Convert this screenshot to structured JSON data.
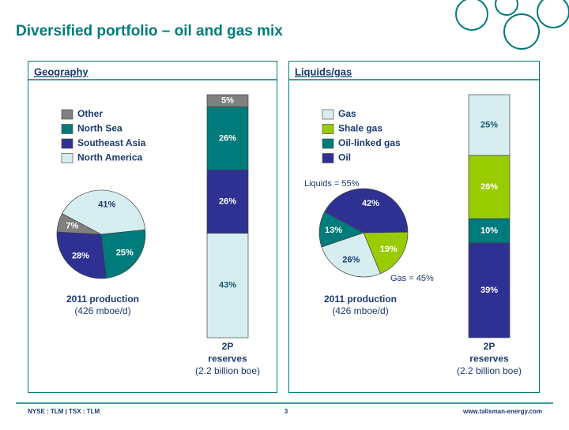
{
  "title": "Diversified portfolio – oil and gas mix",
  "footer": {
    "left": "NYSE : TLM | TSX : TLM",
    "page": "3",
    "right": "www.talisman-energy.com"
  },
  "chart_data": [
    {
      "type": "pie",
      "title": "Geography",
      "categories": [
        "Other",
        "North Sea",
        "Southeast Asia",
        "North America"
      ],
      "values": [
        7,
        25,
        28,
        41
      ],
      "value_labels": [
        "7%",
        "25%",
        "28%",
        "41%"
      ],
      "colors": [
        "#808080",
        "#007b7b",
        "#2e3192",
        "#d6eef0"
      ],
      "caption": [
        "2011 production",
        "(426 mboe/d)"
      ]
    },
    {
      "type": "bar",
      "stacked": true,
      "values": [
        5,
        26,
        26,
        43
      ],
      "value_labels": [
        "5%",
        "26%",
        "26%",
        "43%"
      ],
      "colors": [
        "#808080",
        "#007b7b",
        "#2e3192",
        "#d6eef0"
      ],
      "caption": [
        "2P",
        "reserves",
        "(2.2 billion boe)"
      ]
    },
    {
      "type": "pie",
      "title": "Liquids/gas",
      "categories": [
        "Gas",
        "Shale gas",
        "Oil-linked gas",
        "Oil"
      ],
      "values": [
        26,
        19,
        13,
        42
      ],
      "value_labels": [
        "26%",
        "19%",
        "13%",
        "42%"
      ],
      "colors": [
        "#d6eef0",
        "#99cc00",
        "#007b7b",
        "#2e3192"
      ],
      "caption": [
        "2011 production",
        "(426 mboe/d)"
      ],
      "annotations": [
        "Liquids = 55%",
        "Gas = 45%"
      ]
    },
    {
      "type": "bar",
      "stacked": true,
      "values": [
        25,
        26,
        10,
        39
      ],
      "value_labels": [
        "25%",
        "26%",
        "10%",
        "39%"
      ],
      "colors": [
        "#d6eef0",
        "#99cc00",
        "#007b7b",
        "#2e3192"
      ],
      "caption": [
        "2P",
        "reserves",
        "(2.2 billion boe)"
      ]
    }
  ]
}
